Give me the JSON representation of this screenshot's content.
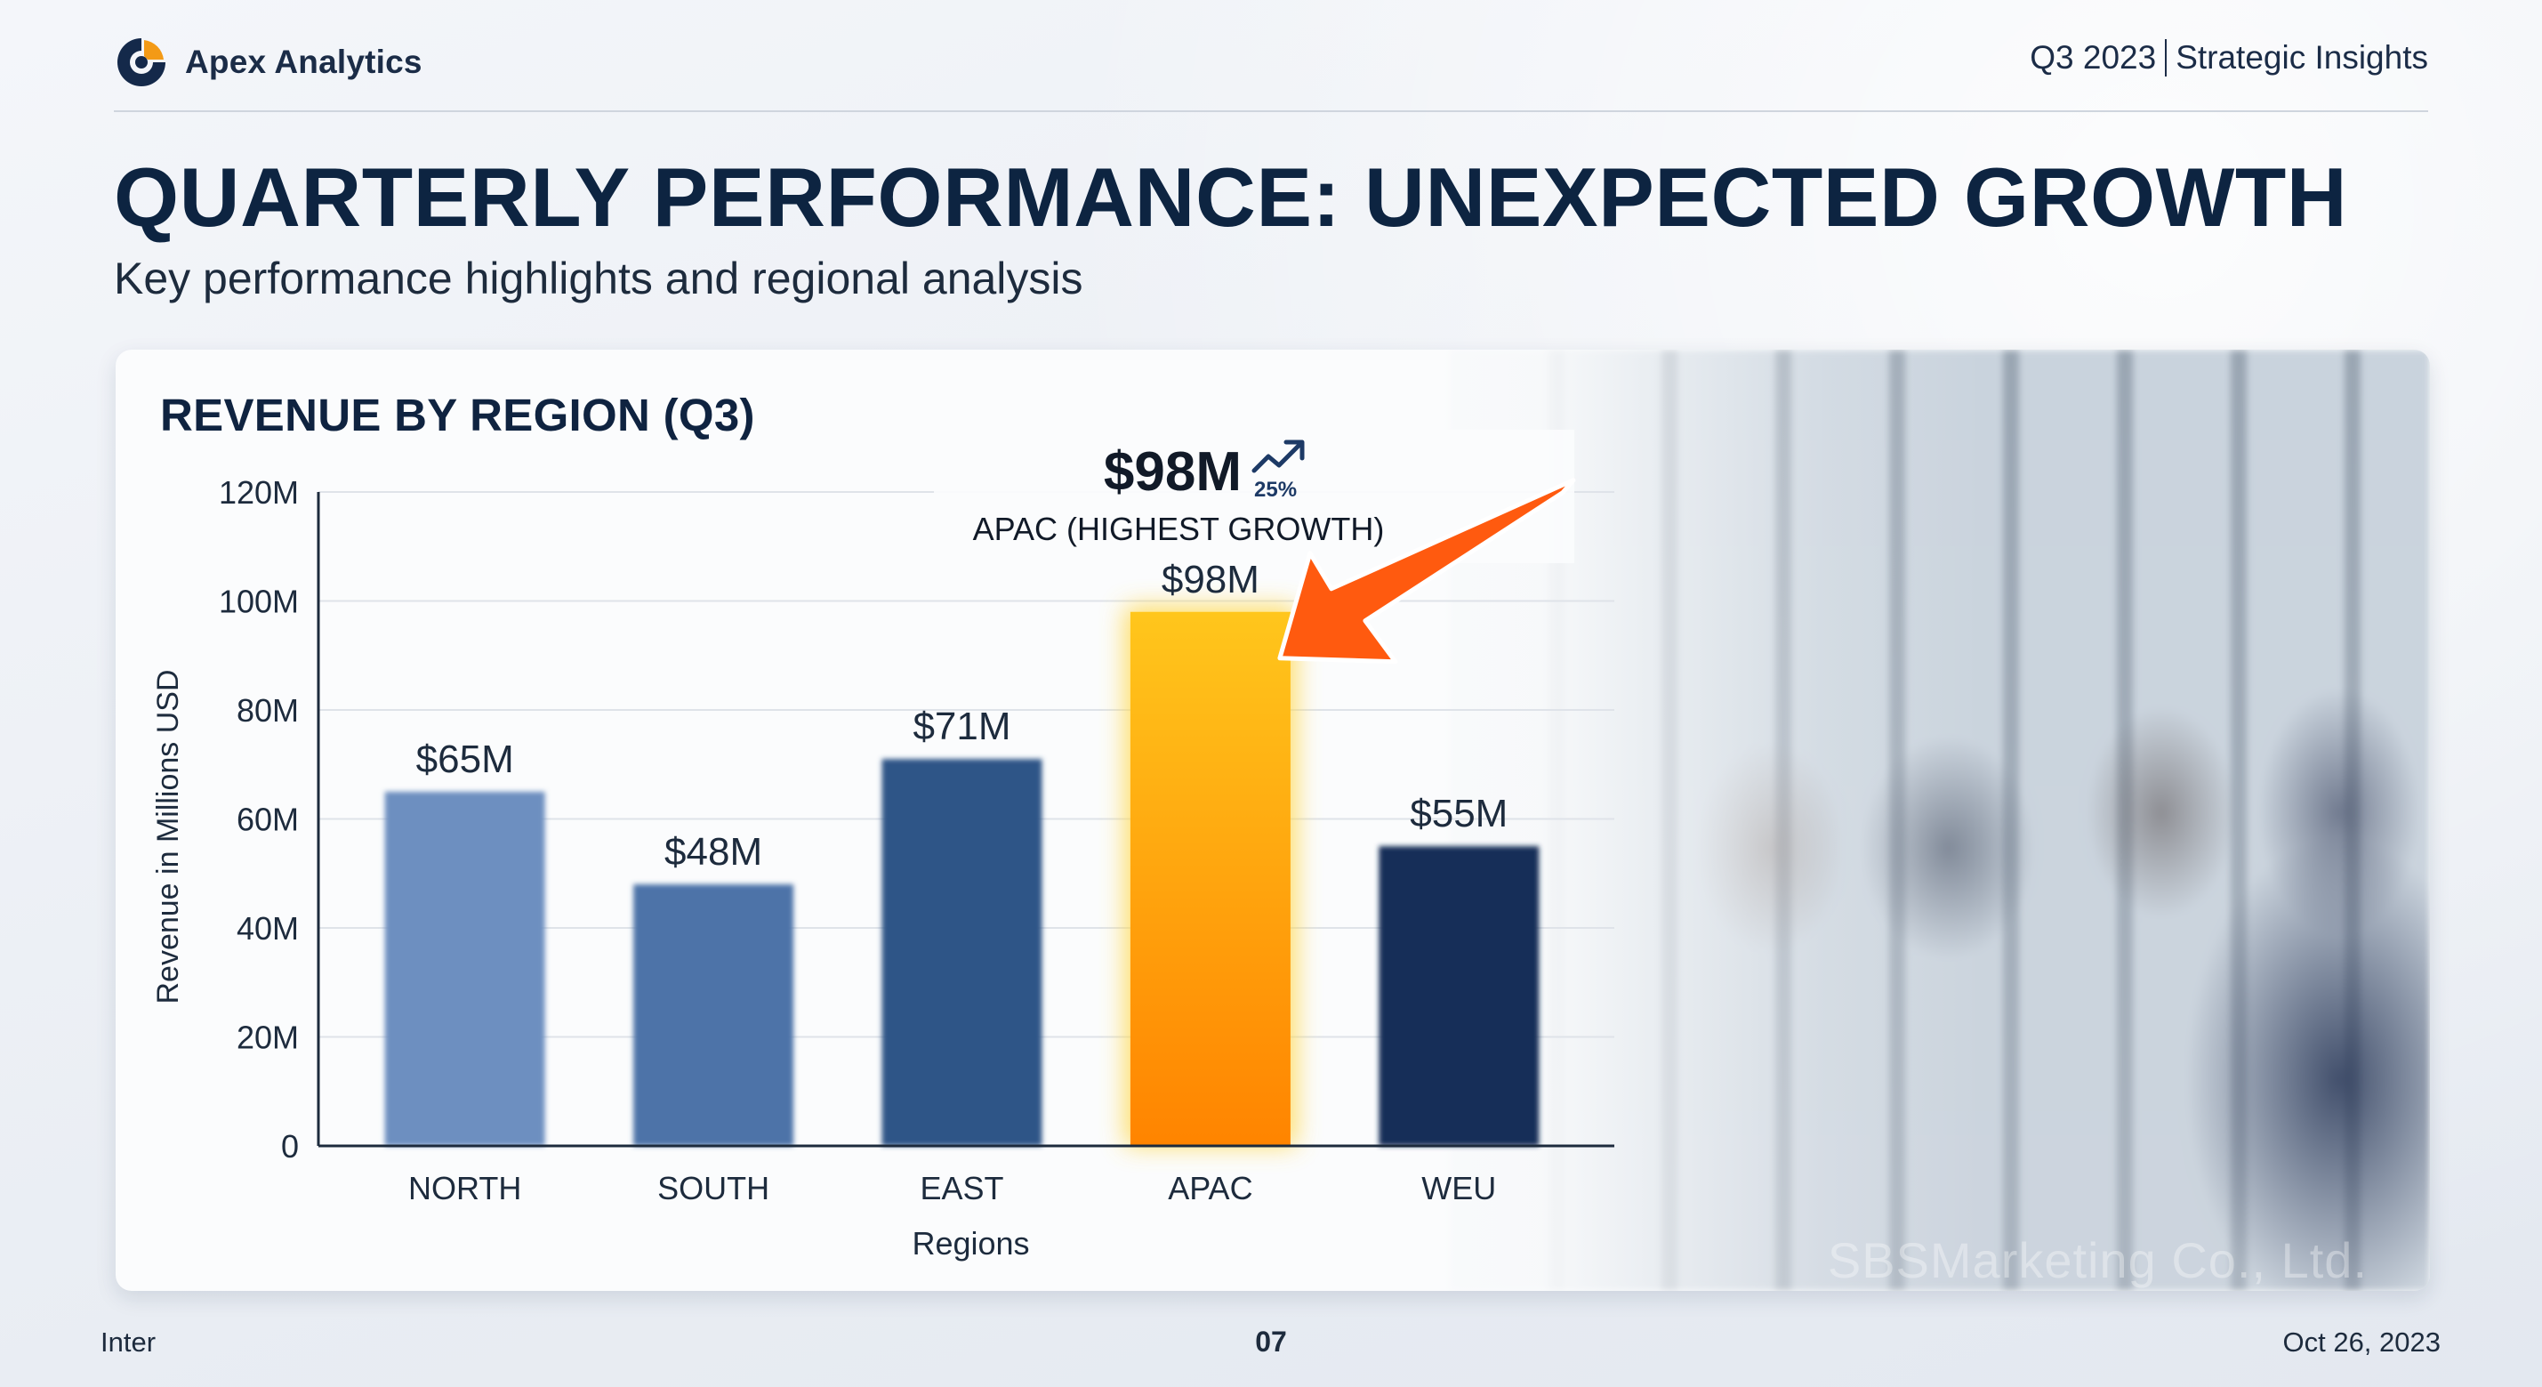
{
  "header": {
    "brand_name": "Apex Analytics",
    "period": "Q3 2023",
    "section": "Strategic Insights"
  },
  "page": {
    "title": "QUARTERLY PERFORMANCE: UNEXPECTED GROWTH",
    "subtitle": "Key performance highlights and regional analysis"
  },
  "footer": {
    "left": "Inter",
    "page_number": "07",
    "date": "Oct 26, 2023"
  },
  "watermark": "SBSMarketing Co., Ltd.",
  "colors": {
    "accent": "#ff8a00",
    "accent_light": "#ffc21a",
    "arrow": "#ff5a0f",
    "title": "#0d2441"
  },
  "chart_data": {
    "type": "bar",
    "title": "REVENUE BY REGION (Q3)",
    "xlabel": "Regions",
    "ylabel": "Revenue in Millions USD",
    "ylim": [
      0,
      120
    ],
    "yticks": [
      0,
      20,
      40,
      60,
      80,
      100,
      120
    ],
    "ytick_labels": [
      "0",
      "20M",
      "40M",
      "60M",
      "80M",
      "100M",
      "120M"
    ],
    "categories": [
      "NORTH",
      "SOUTH",
      "EAST",
      "APAC",
      "WEU"
    ],
    "values": [
      65,
      48,
      71,
      98,
      55
    ],
    "data_labels": [
      "$65M",
      "$48M",
      "$71M",
      "$98M",
      "$55M"
    ],
    "bar_colors": [
      "#6d8fc0",
      "#4e73a8",
      "#2f5487",
      "#ff9500",
      "#152d59"
    ],
    "grid": true,
    "highlight": {
      "category": "APAC",
      "value_label": "$98M",
      "growth_label": "25%",
      "caption": "APAC (HIGHEST GROWTH)"
    }
  }
}
